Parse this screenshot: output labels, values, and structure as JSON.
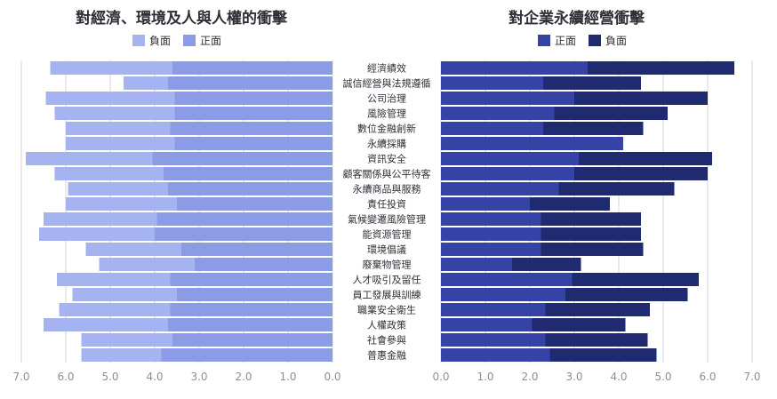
{
  "colors": {
    "left_negative": "#a5b4f0",
    "left_positive": "#8c9be6",
    "right_positive": "#3542a6",
    "right_negative": "#1f2a70",
    "grid": "#d4d4d8",
    "label": "#2f2f38",
    "tick": "#8a8f9c"
  },
  "left_title": "對經濟、環境及人與人權的衝擊",
  "left_legend": [
    {
      "name": "負面",
      "color": "#a5b4f0"
    },
    {
      "name": "正面",
      "color": "#8c9be6"
    }
  ],
  "right_title": "對企業永續經營衝擊",
  "right_legend": [
    {
      "name": "正面",
      "color": "#3542a6"
    },
    {
      "name": "負面",
      "color": "#1f2a70"
    }
  ],
  "chart_data": [
    {
      "type": "bar",
      "orientation": "horizontal-stacked",
      "title": "對經濟、環境及人與人權的衝擊",
      "direction": "right-to-left",
      "xlim": [
        0,
        7
      ],
      "ticks": [
        "7.0",
        "6.0",
        "5.0",
        "4.0",
        "3.0",
        "2.0",
        "1.0",
        "0.0"
      ],
      "categories": [
        "經濟績效",
        "誠信經營與法規遵循",
        "公司治理",
        "風險管理",
        "數位金融創新",
        "永續採購",
        "資訊安全",
        "顧客關係與公平待客",
        "永續商品與服務",
        "責任投資",
        "氣候變遷風險管理",
        "能資源管理",
        "環境倡議",
        "廢棄物管理",
        "人才吸引及留任",
        "員工發展與訓練",
        "職業安全衛生",
        "人權政策",
        "社會參與",
        "普惠金融"
      ],
      "series": [
        {
          "name": "正面",
          "values": [
            3.6,
            3.7,
            3.55,
            3.55,
            3.65,
            3.55,
            4.05,
            3.8,
            3.7,
            3.5,
            3.95,
            4.0,
            3.4,
            3.1,
            3.65,
            3.5,
            3.65,
            3.7,
            3.6,
            3.85
          ]
        },
        {
          "name": "負面",
          "values": [
            2.75,
            1.0,
            2.9,
            2.7,
            2.35,
            2.45,
            2.85,
            2.45,
            2.25,
            2.5,
            2.55,
            2.6,
            2.15,
            2.15,
            2.55,
            2.35,
            2.5,
            2.8,
            2.05,
            1.8
          ]
        }
      ]
    },
    {
      "type": "bar",
      "orientation": "horizontal-stacked",
      "title": "對企業永續經營衝擊",
      "direction": "left-to-right",
      "xlim": [
        0,
        7
      ],
      "ticks": [
        "0.0",
        "1.0",
        "2.0",
        "3.0",
        "4.0",
        "5.0",
        "6.0",
        "7.0"
      ],
      "categories": [
        "經濟績效",
        "誠信經營與法規遵循",
        "公司治理",
        "風險管理",
        "數位金融創新",
        "永續採購",
        "資訊安全",
        "顧客關係與公平待客",
        "永續商品與服務",
        "責任投資",
        "氣候變遷風險管理",
        "能資源管理",
        "環境倡議",
        "廢棄物管理",
        "人才吸引及留任",
        "員工發展與訓練",
        "職業安全衛生",
        "人權政策",
        "社會參與",
        "普惠金融"
      ],
      "series": [
        {
          "name": "正面",
          "values": [
            3.3,
            2.3,
            3.0,
            2.55,
            2.3,
            4.1,
            3.1,
            3.0,
            2.65,
            2.0,
            2.25,
            2.25,
            2.25,
            1.6,
            2.95,
            2.8,
            2.35,
            2.05,
            2.35,
            2.45
          ]
        },
        {
          "name": "負面",
          "values": [
            3.3,
            2.2,
            3.0,
            2.55,
            2.25,
            0.0,
            3.0,
            3.0,
            2.6,
            1.8,
            2.25,
            2.25,
            2.3,
            1.55,
            2.85,
            2.75,
            2.35,
            2.1,
            2.3,
            2.4
          ]
        }
      ]
    }
  ]
}
